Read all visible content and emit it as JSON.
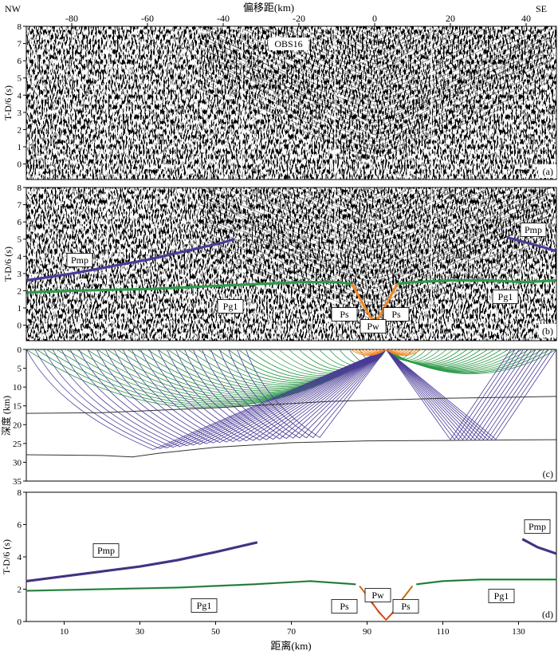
{
  "top_axis": {
    "title": "偏移距(km)",
    "left_label": "NW",
    "right_label": "SE",
    "range": [
      -92,
      48
    ],
    "ticks": [
      "-80",
      "-60",
      "-40",
      "-20",
      "0",
      "20",
      "40"
    ]
  },
  "panels": {
    "a": {
      "tag": "(a)",
      "ylabel": "T-D/6 (s)",
      "ylim": [
        -0.9,
        8
      ],
      "yticks": [
        "0",
        "1",
        "2",
        "3",
        "4",
        "5",
        "6",
        "7",
        "8"
      ],
      "station_label": "OBS16"
    },
    "b": {
      "tag": "(b)",
      "ylabel": "T-D/6 (s)",
      "ylim": [
        -0.9,
        8
      ],
      "yticks": [
        "0",
        "1",
        "2",
        "3",
        "4",
        "5",
        "6",
        "7",
        "8"
      ],
      "labels": {
        "pmp_left": "Pmp",
        "pmp_right": "Pmp",
        "pg1_left": "Pg1",
        "pg1_right": "Pg1",
        "ps_left": "Ps",
        "ps_right": "Ps",
        "pw": "Pw"
      }
    },
    "c": {
      "tag": "(c)",
      "ylabel": "深度 (km)",
      "ylim": [
        0,
        35
      ],
      "yticks": [
        "0",
        "5",
        "10",
        "15",
        "20",
        "25",
        "30",
        "35"
      ]
    },
    "d": {
      "tag": "(d)",
      "ylabel": "T-D/6 (s)",
      "ylim": [
        0,
        8
      ],
      "yticks": [
        "0",
        "2",
        "4",
        "6",
        "8"
      ],
      "xlabel": "距离(km)",
      "xlim": [
        0,
        140
      ],
      "xticks": [
        "10",
        "30",
        "50",
        "70",
        "90",
        "110",
        "130"
      ],
      "labels": {
        "pmp_left": "Pmp",
        "pmp_right": "Pmp",
        "pg1_left": "Pg1",
        "pg1_right": "Pg1",
        "ps_left": "Ps",
        "ps_right": "Ps",
        "pw": "Pw"
      }
    }
  },
  "colors": {
    "pmp": "#4b3a97",
    "pg1": "#2e9a4a",
    "ps": "#f08a2a",
    "pw": "#d23a2a",
    "interface": "#333333"
  },
  "chart_data": [
    {
      "type": "line",
      "panel": "b",
      "x_unit": "offset km",
      "series": [
        {
          "name": "Pmp",
          "x": [
            -92,
            -80,
            -70,
            -60,
            -50,
            -40,
            -37
          ],
          "y": [
            2.6,
            3.0,
            3.4,
            3.8,
            4.3,
            4.8,
            5.0
          ]
        },
        {
          "name": "Pmp",
          "x": [
            35,
            40,
            45,
            48
          ],
          "y": [
            5.1,
            4.8,
            4.5,
            4.3
          ]
        },
        {
          "name": "Pg1",
          "x": [
            -92,
            -80,
            -60,
            -40,
            -20,
            -10,
            -6
          ],
          "y": [
            1.9,
            2.0,
            2.1,
            2.3,
            2.5,
            2.5,
            2.4
          ]
        },
        {
          "name": "Pg1",
          "x": [
            6,
            10,
            20,
            30,
            40,
            48
          ],
          "y": [
            2.4,
            2.5,
            2.6,
            2.6,
            2.5,
            2.6
          ]
        },
        {
          "name": "Ps",
          "x": [
            -6,
            -4,
            -2,
            0
          ],
          "y": [
            2.4,
            1.6,
            0.8,
            0.1
          ]
        },
        {
          "name": "Ps",
          "x": [
            0,
            2,
            4,
            6
          ],
          "y": [
            0.1,
            0.8,
            1.6,
            2.4
          ]
        }
      ]
    },
    {
      "type": "line",
      "panel": "c",
      "x_unit": "distance km",
      "source_x": 95,
      "interfaces": [
        {
          "x": [
            0,
            20,
            50,
            80,
            110,
            140
          ],
          "y": [
            17.0,
            16.8,
            15.5,
            13.8,
            13.0,
            12.5
          ]
        },
        {
          "x": [
            0,
            20,
            28,
            35,
            50,
            70,
            90,
            110,
            140
          ],
          "y": [
            28.0,
            28.2,
            28.6,
            27.6,
            26.0,
            24.8,
            24.3,
            24.2,
            24.0
          ]
        }
      ],
      "ray_turning_points": {
        "pg1_left": [
          0,
          95
        ],
        "pg1_right": [
          100,
          140
        ],
        "pmp_left": [
          22,
          62
        ],
        "pmp_right": [
          112,
          124
        ]
      }
    },
    {
      "type": "line",
      "panel": "d",
      "series": [
        {
          "name": "Pmp",
          "x": [
            0,
            10,
            20,
            30,
            40,
            50,
            61
          ],
          "y": [
            2.5,
            2.8,
            3.1,
            3.4,
            3.8,
            4.3,
            4.9
          ]
        },
        {
          "name": "Pmp",
          "x": [
            131,
            135,
            140
          ],
          "y": [
            5.1,
            4.6,
            4.2
          ]
        },
        {
          "name": "Pg1",
          "x": [
            0,
            20,
            40,
            60,
            75,
            87
          ],
          "y": [
            1.9,
            2.0,
            2.1,
            2.3,
            2.5,
            2.3
          ]
        },
        {
          "name": "Pg1",
          "x": [
            103,
            110,
            120,
            130,
            140
          ],
          "y": [
            2.3,
            2.5,
            2.6,
            2.6,
            2.6
          ]
        },
        {
          "name": "Ps",
          "x": [
            88,
            91,
            93,
            95
          ],
          "y": [
            2.2,
            1.3,
            0.6,
            0.1
          ]
        },
        {
          "name": "Ps",
          "x": [
            95,
            97,
            99,
            102
          ],
          "y": [
            0.1,
            0.6,
            1.3,
            2.2
          ]
        }
      ]
    }
  ]
}
